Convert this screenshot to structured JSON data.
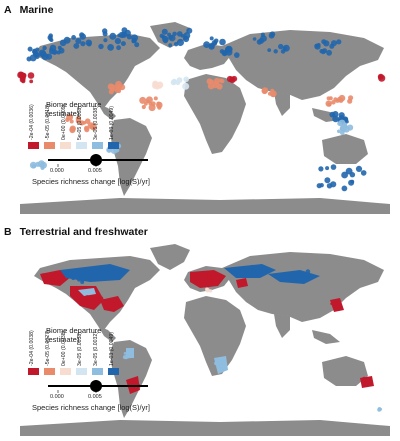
{
  "panels": [
    {
      "letter": "A",
      "title": "Marine",
      "legend": {
        "title_line1": "Biome departure",
        "title_line2": "(estimate)",
        "categories": [
          {
            "label": "-2e-04 (0.0036)",
            "color": "#c2182b"
          },
          {
            "label": "-5e-05 (0.0018)",
            "color": "#e98b6b"
          },
          {
            "label": "0e+00 (0.0009)",
            "color": "#f7dcd0"
          },
          {
            "label": "5e-05 (0.0008)",
            "color": "#d3e5f1"
          },
          {
            "label": "3e-05 (0.0038)",
            "color": "#8fbddf"
          },
          {
            "label": "1e-03 (0.0049)",
            "color": "#2166ac"
          }
        ],
        "size_ticks": [
          "0.000",
          "0.005"
        ],
        "size_title": "Species richness change [log(S)/yr]"
      }
    },
    {
      "letter": "B",
      "title": "Terrestrial and freshwater",
      "legend": {
        "title_line1": "Biome departure",
        "title_line2": "(estimate)",
        "categories": [
          {
            "label": "-2e-04 (0.0038)",
            "color": "#c2182b"
          },
          {
            "label": "-5e-05 (0.0027)",
            "color": "#e98b6b"
          },
          {
            "label": "0e+00 (0.0038)",
            "color": "#f7dcd0"
          },
          {
            "label": "3e-05 (0.0038)",
            "color": "#d3e5f1"
          },
          {
            "label": "3e-05 (0.0032)",
            "color": "#8fbddf"
          },
          {
            "label": "1e-03 (0.0049)",
            "color": "#2166ac"
          }
        ],
        "size_ticks": [
          "0.000",
          "0.005"
        ],
        "size_title": "Species richness change [log(S)/yr]"
      }
    }
  ],
  "colors": {
    "land": "#8c8c8c",
    "ocean": "#ffffff",
    "strong_negative": "#c2182b",
    "negative": "#e98b6b",
    "neutral_neg": "#f7dcd0",
    "neutral_pos": "#d3e5f1",
    "positive": "#8fbddf",
    "strong_positive": "#2166ac"
  }
}
